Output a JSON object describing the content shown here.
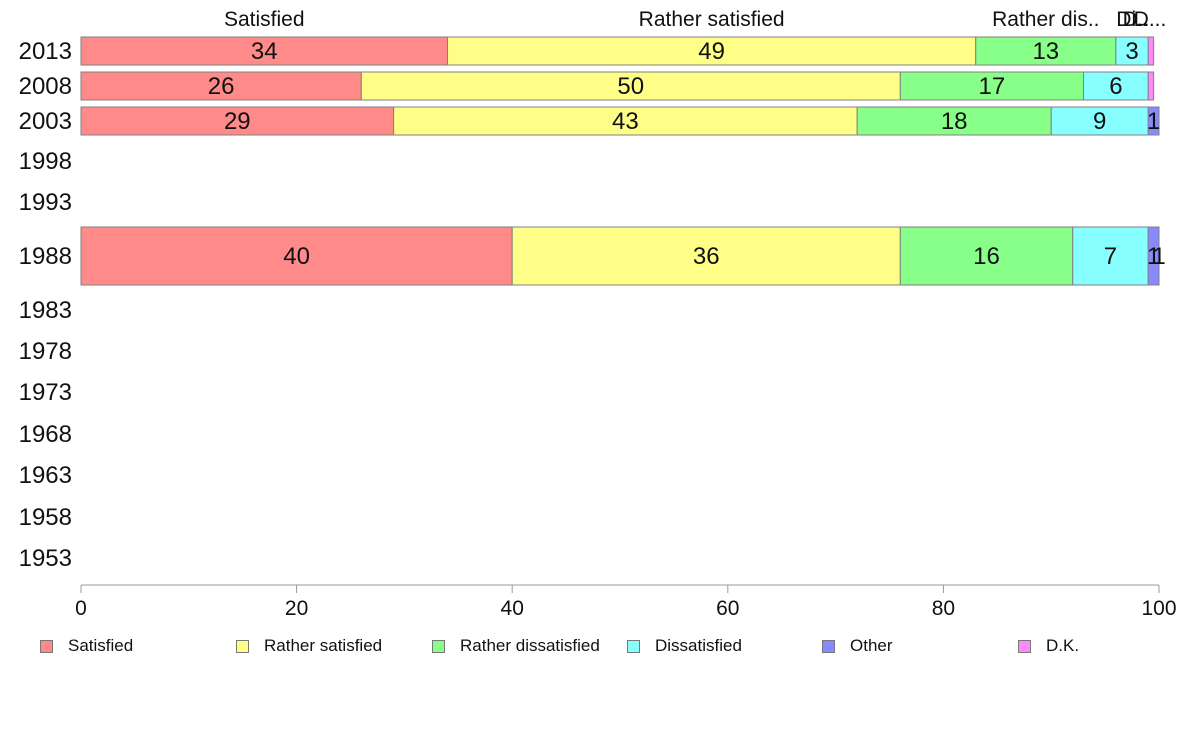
{
  "chart_data": {
    "type": "bar",
    "orientation": "horizontal",
    "stacked": true,
    "categories": [
      "2013",
      "2008",
      "2003",
      "1998",
      "1993",
      "1988",
      "1983",
      "1978",
      "1973",
      "1968",
      "1963",
      "1958",
      "1953"
    ],
    "series": [
      {
        "name": "Satisfied",
        "color": "#ff8a8a",
        "values": [
          34,
          26,
          29,
          null,
          null,
          40,
          null,
          null,
          null,
          null,
          null,
          null,
          null
        ]
      },
      {
        "name": "Rather satisfied",
        "color": "#ffff88",
        "values": [
          49,
          50,
          43,
          null,
          null,
          36,
          null,
          null,
          null,
          null,
          null,
          null,
          null
        ]
      },
      {
        "name": "Rather dissatisfied",
        "color": "#88ff88",
        "values": [
          13,
          17,
          18,
          null,
          null,
          16,
          null,
          null,
          null,
          null,
          null,
          null,
          null
        ]
      },
      {
        "name": "Dissatisfied",
        "color": "#88ffff",
        "values": [
          3,
          6,
          9,
          null,
          null,
          7,
          null,
          null,
          null,
          null,
          null,
          null,
          null
        ]
      },
      {
        "name": "Other",
        "color": "#8888ff",
        "values": [
          0,
          0,
          1,
          null,
          null,
          1,
          null,
          null,
          null,
          null,
          null,
          null,
          null
        ]
      },
      {
        "name": "D.K.",
        "color": "#ff88ff",
        "values": [
          0.5,
          0.5,
          0.5,
          null,
          null,
          0.5,
          null,
          null,
          null,
          null,
          null,
          null,
          null
        ]
      }
    ],
    "data_labels": [
      [
        "34",
        "49",
        "13",
        "3",
        "",
        ""
      ],
      [
        "26",
        "50",
        "17",
        "6",
        "",
        ""
      ],
      [
        "29",
        "43",
        "18",
        "9",
        "1",
        ""
      ],
      null,
      null,
      [
        "40",
        "36",
        "16",
        "7",
        "1",
        "1"
      ],
      null,
      null,
      null,
      null,
      null,
      null,
      null
    ],
    "top_labels": [
      "Satisfied",
      "Rather satisfied",
      "Rather dis..",
      "Di..",
      "D..",
      "D..."
    ],
    "xlim": [
      0,
      100
    ],
    "xticks": [
      0,
      20,
      40,
      60,
      80,
      100
    ],
    "xlabel": "",
    "ylabel": "",
    "title": "",
    "grid": false,
    "legend_position": "bottom"
  }
}
